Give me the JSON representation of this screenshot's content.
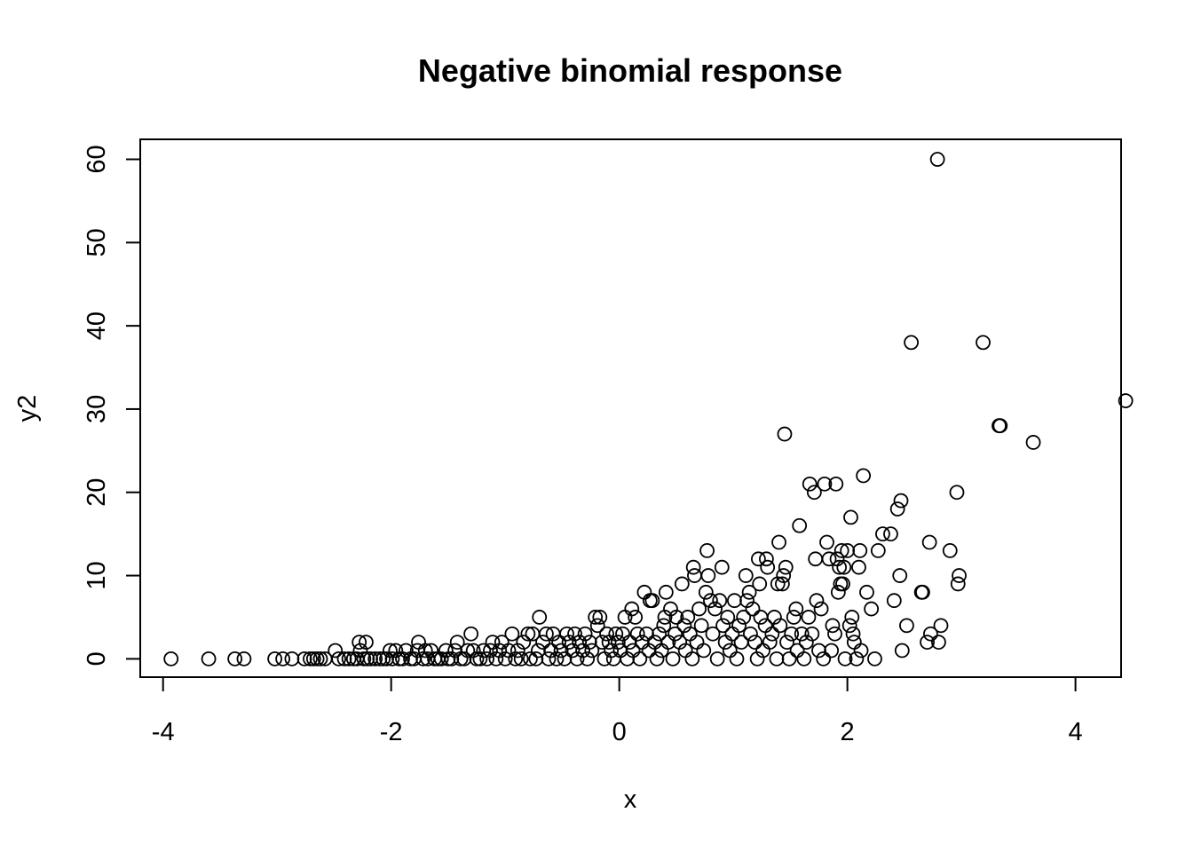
{
  "chart_data": {
    "type": "scatter",
    "title": "Negative binomial response",
    "xlabel": "x",
    "ylabel": "y2",
    "xlim": [
      -4.2,
      4.4
    ],
    "ylim": [
      -2.2,
      62.4
    ],
    "grid": false,
    "marker": "open-circle",
    "x_ticks": [
      -4,
      -2,
      0,
      2,
      4
    ],
    "y_ticks": [
      0,
      10,
      20,
      30,
      40,
      50,
      60
    ],
    "x_tick_labels": [
      "-4",
      "-2",
      "0",
      "2",
      "4"
    ],
    "y_tick_labels": [
      "0",
      "10",
      "20",
      "30",
      "40",
      "50",
      "60"
    ],
    "points": [
      [
        -3.93,
        0
      ],
      [
        -3.6,
        0
      ],
      [
        -3.37,
        0
      ],
      [
        -3.29,
        0
      ],
      [
        -3.02,
        0
      ],
      [
        -2.95,
        0
      ],
      [
        -2.87,
        0
      ],
      [
        -2.76,
        0
      ],
      [
        -2.71,
        0
      ],
      [
        -2.68,
        0
      ],
      [
        -2.65,
        0
      ],
      [
        -2.62,
        0
      ],
      [
        -2.58,
        0
      ],
      [
        -2.49,
        1
      ],
      [
        -2.46,
        0
      ],
      [
        -2.41,
        0
      ],
      [
        -2.37,
        0
      ],
      [
        -2.33,
        0
      ],
      [
        -2.3,
        0
      ],
      [
        -2.28,
        2
      ],
      [
        -2.27,
        1
      ],
      [
        -2.24,
        0
      ],
      [
        -2.22,
        2
      ],
      [
        -2.21,
        0
      ],
      [
        -2.18,
        0
      ],
      [
        -2.14,
        0
      ],
      [
        -2.1,
        0
      ],
      [
        -2.07,
        0
      ],
      [
        -2.04,
        0
      ],
      [
        -2.01,
        1
      ],
      [
        -1.99,
        0
      ],
      [
        -1.96,
        1
      ],
      [
        -1.93,
        0
      ],
      [
        -1.9,
        0
      ],
      [
        -1.87,
        1
      ],
      [
        -1.83,
        0
      ],
      [
        -1.8,
        0
      ],
      [
        -1.77,
        1
      ],
      [
        -1.76,
        2
      ],
      [
        -1.72,
        0
      ],
      [
        -1.7,
        1
      ],
      [
        -1.68,
        0
      ],
      [
        -1.65,
        1
      ],
      [
        -1.62,
        0
      ],
      [
        -1.59,
        0
      ],
      [
        -1.56,
        0
      ],
      [
        -1.52,
        1
      ],
      [
        -1.5,
        0
      ],
      [
        -1.47,
        0
      ],
      [
        -1.44,
        1
      ],
      [
        -1.42,
        2
      ],
      [
        -1.39,
        0
      ],
      [
        -1.36,
        0
      ],
      [
        -1.33,
        1
      ],
      [
        -1.3,
        3
      ],
      [
        -1.28,
        1
      ],
      [
        -1.25,
        0
      ],
      [
        -1.22,
        0
      ],
      [
        -1.19,
        1
      ],
      [
        -1.16,
        0
      ],
      [
        -1.13,
        1
      ],
      [
        -1.11,
        2
      ],
      [
        -1.08,
        0
      ],
      [
        -1.05,
        1
      ],
      [
        -1.03,
        2
      ],
      [
        -1.0,
        0
      ],
      [
        -0.97,
        1
      ],
      [
        -0.94,
        3
      ],
      [
        -0.91,
        0
      ],
      [
        -0.89,
        1
      ],
      [
        -0.86,
        0
      ],
      [
        -0.84,
        2
      ],
      [
        -0.8,
        3
      ],
      [
        -0.78,
        0
      ],
      [
        -0.76,
        3
      ],
      [
        -0.73,
        0
      ],
      [
        -0.71,
        1
      ],
      [
        -0.7,
        5
      ],
      [
        -0.67,
        2
      ],
      [
        -0.64,
        3
      ],
      [
        -0.62,
        0
      ],
      [
        -0.6,
        1
      ],
      [
        -0.58,
        3
      ],
      [
        -0.55,
        0
      ],
      [
        -0.53,
        2
      ],
      [
        -0.51,
        1
      ],
      [
        -0.48,
        0
      ],
      [
        -0.46,
        3
      ],
      [
        -0.44,
        2
      ],
      [
        -0.41,
        1
      ],
      [
        -0.39,
        3
      ],
      [
        -0.37,
        0
      ],
      [
        -0.35,
        2
      ],
      [
        -0.32,
        1
      ],
      [
        -0.3,
        3
      ],
      [
        -0.28,
        0
      ],
      [
        -0.26,
        2
      ],
      [
        -0.24,
        1
      ],
      [
        -0.21,
        5
      ],
      [
        -0.19,
        4
      ],
      [
        -0.17,
        5
      ],
      [
        -0.15,
        2
      ],
      [
        -0.13,
        0
      ],
      [
        -0.11,
        3
      ],
      [
        -0.09,
        2
      ],
      [
        -0.07,
        1
      ],
      [
        -0.05,
        0
      ],
      [
        -0.03,
        3
      ],
      [
        -0.01,
        2
      ],
      [
        0.01,
        1
      ],
      [
        0.03,
        3
      ],
      [
        0.05,
        5
      ],
      [
        0.07,
        0
      ],
      [
        0.09,
        2
      ],
      [
        0.11,
        6
      ],
      [
        0.12,
        1
      ],
      [
        0.14,
        5
      ],
      [
        0.16,
        3
      ],
      [
        0.18,
        0
      ],
      [
        0.2,
        2
      ],
      [
        0.22,
        8
      ],
      [
        0.24,
        3
      ],
      [
        0.26,
        1
      ],
      [
        0.27,
        7
      ],
      [
        0.29,
        7
      ],
      [
        0.31,
        2
      ],
      [
        0.33,
        0
      ],
      [
        0.35,
        3
      ],
      [
        0.37,
        1
      ],
      [
        0.39,
        4
      ],
      [
        0.4,
        5
      ],
      [
        0.41,
        8
      ],
      [
        0.43,
        2
      ],
      [
        0.45,
        6
      ],
      [
        0.47,
        0
      ],
      [
        0.49,
        3
      ],
      [
        0.5,
        5
      ],
      [
        0.53,
        2
      ],
      [
        0.55,
        9
      ],
      [
        0.57,
        4
      ],
      [
        0.58,
        1
      ],
      [
        0.6,
        5
      ],
      [
        0.62,
        3
      ],
      [
        0.64,
        0
      ],
      [
        0.65,
        11
      ],
      [
        0.66,
        10
      ],
      [
        0.68,
        2
      ],
      [
        0.7,
        6
      ],
      [
        0.72,
        4
      ],
      [
        0.74,
        1
      ],
      [
        0.76,
        8
      ],
      [
        0.77,
        13
      ],
      [
        0.78,
        10
      ],
      [
        0.8,
        7
      ],
      [
        0.82,
        3
      ],
      [
        0.84,
        6
      ],
      [
        0.86,
        0
      ],
      [
        0.88,
        7
      ],
      [
        0.9,
        11
      ],
      [
        0.91,
        4
      ],
      [
        0.93,
        2
      ],
      [
        0.95,
        5
      ],
      [
        0.97,
        1
      ],
      [
        0.99,
        3
      ],
      [
        1.01,
        7
      ],
      [
        1.03,
        0
      ],
      [
        1.05,
        4
      ],
      [
        1.07,
        2
      ],
      [
        1.09,
        5
      ],
      [
        1.11,
        10
      ],
      [
        1.12,
        7
      ],
      [
        1.14,
        8
      ],
      [
        1.15,
        3
      ],
      [
        1.17,
        6
      ],
      [
        1.19,
        2
      ],
      [
        1.21,
        0
      ],
      [
        1.22,
        12
      ],
      [
        1.23,
        9
      ],
      [
        1.24,
        5
      ],
      [
        1.26,
        1
      ],
      [
        1.28,
        4
      ],
      [
        1.29,
        12
      ],
      [
        1.3,
        11
      ],
      [
        1.32,
        2
      ],
      [
        1.34,
        3
      ],
      [
        1.36,
        5
      ],
      [
        1.38,
        0
      ],
      [
        1.39,
        9
      ],
      [
        1.4,
        14
      ],
      [
        1.41,
        4
      ],
      [
        1.43,
        9
      ],
      [
        1.44,
        10
      ],
      [
        1.45,
        27
      ],
      [
        1.46,
        11
      ],
      [
        1.47,
        2
      ],
      [
        1.49,
        0
      ],
      [
        1.51,
        3
      ],
      [
        1.53,
        5
      ],
      [
        1.55,
        6
      ],
      [
        1.56,
        1
      ],
      [
        1.58,
        16
      ],
      [
        1.6,
        3
      ],
      [
        1.62,
        0
      ],
      [
        1.64,
        2
      ],
      [
        1.66,
        5
      ],
      [
        1.67,
        21
      ],
      [
        1.69,
        3
      ],
      [
        1.71,
        20
      ],
      [
        1.72,
        12
      ],
      [
        1.73,
        7
      ],
      [
        1.75,
        1
      ],
      [
        1.77,
        6
      ],
      [
        1.79,
        0
      ],
      [
        1.8,
        21
      ],
      [
        1.82,
        14
      ],
      [
        1.84,
        12
      ],
      [
        1.86,
        1
      ],
      [
        1.87,
        4
      ],
      [
        1.89,
        3
      ],
      [
        1.9,
        21
      ],
      [
        1.91,
        12
      ],
      [
        1.92,
        8
      ],
      [
        1.93,
        11
      ],
      [
        1.94,
        9
      ],
      [
        1.95,
        13
      ],
      [
        1.96,
        9
      ],
      [
        1.97,
        11
      ],
      [
        1.98,
        0
      ],
      [
        2.0,
        13
      ],
      [
        2.02,
        4
      ],
      [
        2.03,
        17
      ],
      [
        2.04,
        5
      ],
      [
        2.05,
        3
      ],
      [
        2.06,
        2
      ],
      [
        2.08,
        0
      ],
      [
        2.1,
        11
      ],
      [
        2.11,
        13
      ],
      [
        2.12,
        1
      ],
      [
        2.14,
        22
      ],
      [
        2.17,
        8
      ],
      [
        2.21,
        6
      ],
      [
        2.24,
        0
      ],
      [
        2.27,
        13
      ],
      [
        2.31,
        15
      ],
      [
        2.38,
        15
      ],
      [
        2.41,
        7
      ],
      [
        2.44,
        18
      ],
      [
        2.46,
        10
      ],
      [
        2.47,
        19
      ],
      [
        2.48,
        1
      ],
      [
        2.52,
        4
      ],
      [
        2.56,
        38
      ],
      [
        2.65,
        8
      ],
      [
        2.66,
        8
      ],
      [
        2.7,
        2
      ],
      [
        2.72,
        14
      ],
      [
        2.73,
        3
      ],
      [
        2.79,
        60
      ],
      [
        2.8,
        2
      ],
      [
        2.82,
        4
      ],
      [
        2.9,
        13
      ],
      [
        2.96,
        20
      ],
      [
        2.97,
        9
      ],
      [
        2.98,
        10
      ],
      [
        3.19,
        38
      ],
      [
        3.33,
        28
      ],
      [
        3.34,
        28
      ],
      [
        3.63,
        26
      ],
      [
        4.44,
        31
      ]
    ]
  }
}
